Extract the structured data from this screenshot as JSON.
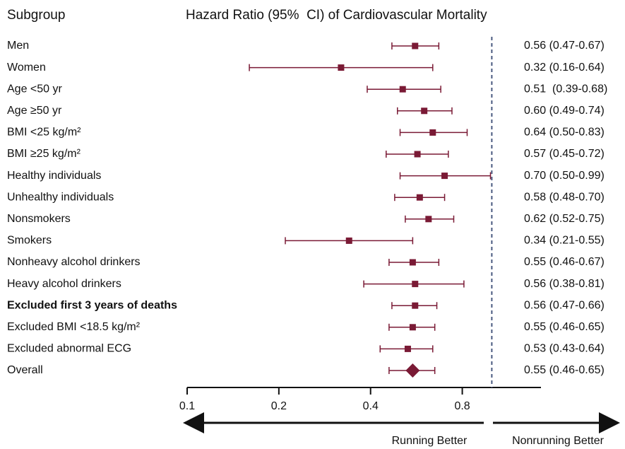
{
  "chart_data": {
    "type": "forest",
    "title": "Hazard Ratio (95%  CI) of Cardiovascular Mortality",
    "category_header": "Subgroup",
    "categories": [
      "Men",
      "Women",
      "Age <50 yr",
      "Age ≥50 yr",
      "BMI <25 kg/m²",
      "BMI ≥25 kg/m²",
      "Healthy individuals",
      "Unhealthy individuals",
      "Nonsmokers",
      "Smokers",
      "Nonheavy alcohol drinkers",
      "Heavy alcohol drinkers",
      "Excluded first 3 years of deaths",
      "Excluded BMI <18.5 kg/m²",
      "Excluded abnormal ECG",
      "Overall"
    ],
    "values": [
      0.56,
      0.32,
      0.51,
      0.6,
      0.64,
      0.57,
      0.7,
      0.58,
      0.62,
      0.34,
      0.55,
      0.56,
      0.56,
      0.55,
      0.53,
      0.55
    ],
    "lower": [
      0.47,
      0.16,
      0.39,
      0.49,
      0.5,
      0.45,
      0.5,
      0.48,
      0.52,
      0.21,
      0.46,
      0.38,
      0.47,
      0.46,
      0.43,
      0.46
    ],
    "upper": [
      0.67,
      0.64,
      0.68,
      0.74,
      0.83,
      0.72,
      0.99,
      0.7,
      0.75,
      0.55,
      0.67,
      0.81,
      0.66,
      0.65,
      0.64,
      0.65
    ],
    "value_labels": [
      "0.56 (0.47-0.67)",
      "0.32 (0.16-0.64)",
      "0.51  (0.39-0.68)",
      "0.60 (0.49-0.74)",
      "0.64 (0.50-0.83)",
      "0.57 (0.45-0.72)",
      "0.70 (0.50-0.99)",
      "0.58 (0.48-0.70)",
      "0.62 (0.52-0.75)",
      "0.34 (0.21-0.55)",
      "0.55 (0.46-0.67)",
      "0.56 (0.38-0.81)",
      "0.56 (0.47-0.66)",
      "0.55 (0.46-0.65)",
      "0.53 (0.43-0.64)",
      "0.55 (0.46-0.65)"
    ],
    "bold_rows": [
      12
    ],
    "diamond_rows": [
      15
    ],
    "color": "#7a1a35",
    "reference_line": 1,
    "log_scale": true,
    "xlim": [
      0.1,
      1.45
    ],
    "xticks": [
      0.1,
      0.2,
      0.4,
      0.8
    ],
    "left_label": "Running Better",
    "right_label": "Nonrunning Better"
  }
}
